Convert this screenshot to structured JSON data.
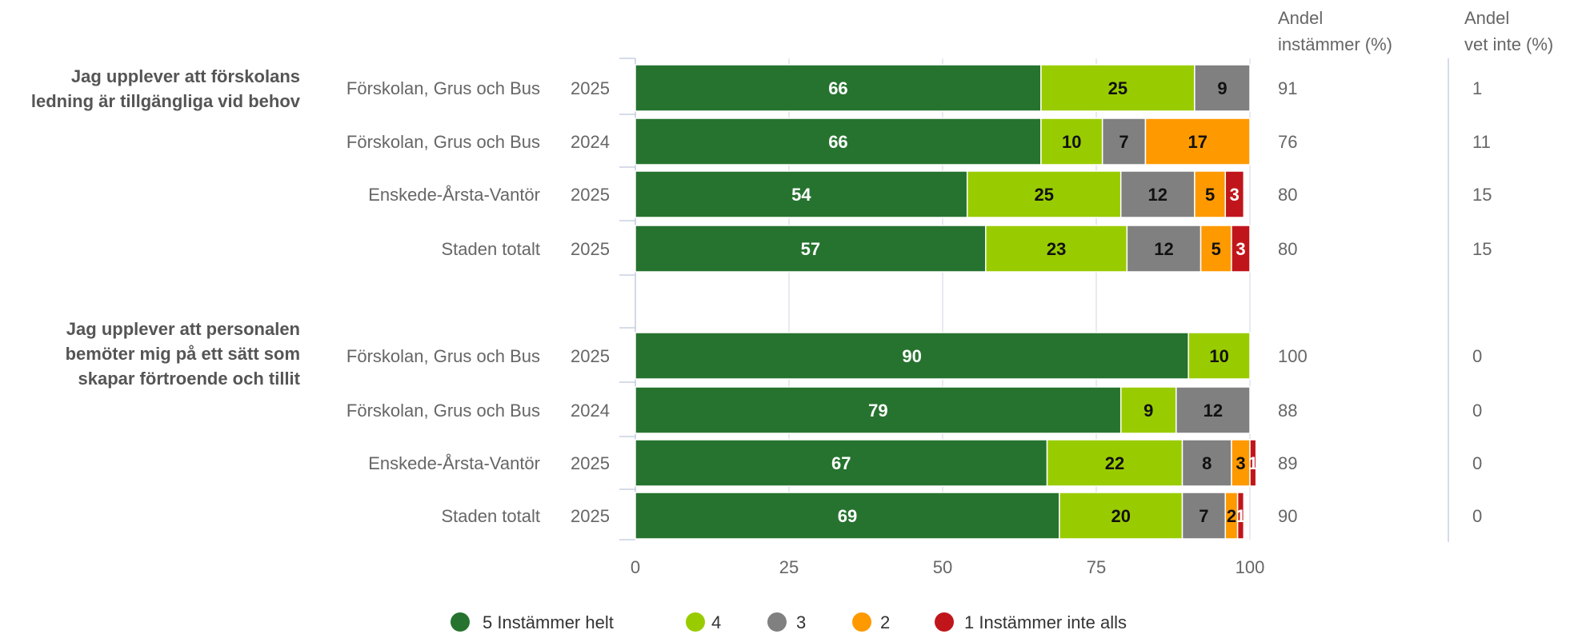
{
  "chart_data": {
    "type": "bar",
    "orientation": "horizontal",
    "stacked": true,
    "xlim": [
      0,
      100
    ],
    "x_ticks": [
      "0",
      "25",
      "50",
      "75",
      "100"
    ],
    "grid": true,
    "legend_placement": "bottom",
    "column_headers": {
      "agree_line1": "Andel",
      "agree_line2": "instämmer (%)",
      "dontknow_line1": "Andel",
      "dontknow_line2": "vet inte (%)"
    },
    "series": [
      {
        "name": "5 Instämmer helt",
        "color": "#26732f",
        "label_color": "#ffffff"
      },
      {
        "name": "4",
        "color": "#99cc00",
        "label_color": "#111111"
      },
      {
        "name": "3",
        "color": "#808080",
        "label_color": "#111111"
      },
      {
        "name": "2",
        "color": "#ff9900",
        "label_color": "#111111"
      },
      {
        "name": "1 Instämmer inte alls",
        "color": "#c0161b",
        "label_color": "#ffffff"
      }
    ],
    "groups": [
      {
        "question_lines": [
          "Jag upplever att förskolans",
          "ledning är tillgängliga vid behov"
        ],
        "rows": [
          {
            "unit": "Förskolan, Grus och Bus",
            "year": "2025",
            "values": [
              66,
              25,
              9,
              0,
              0
            ],
            "agree": "91",
            "dont_know": "1"
          },
          {
            "unit": "Förskolan, Grus och Bus",
            "year": "2024",
            "values": [
              66,
              10,
              7,
              17,
              0
            ],
            "agree": "76",
            "dont_know": "11"
          },
          {
            "unit": "Enskede-Årsta-Vantör",
            "year": "2025",
            "values": [
              54,
              25,
              12,
              5,
              3
            ],
            "agree": "80",
            "dont_know": "15"
          },
          {
            "unit": "Staden totalt",
            "year": "2025",
            "values": [
              57,
              23,
              12,
              5,
              3
            ],
            "agree": "80",
            "dont_know": "15"
          }
        ]
      },
      {
        "question_lines": [
          "Jag upplever att personalen",
          "bemöter mig på ett sätt som",
          "skapar förtroende och tillit"
        ],
        "rows": [
          {
            "unit": "Förskolan, Grus och Bus",
            "year": "2025",
            "values": [
              90,
              10,
              0,
              0,
              0
            ],
            "agree": "100",
            "dont_know": "0"
          },
          {
            "unit": "Förskolan, Grus och Bus",
            "year": "2024",
            "values": [
              79,
              9,
              12,
              0,
              0
            ],
            "agree": "88",
            "dont_know": "0"
          },
          {
            "unit": "Enskede-Årsta-Vantör",
            "year": "2025",
            "values": [
              67,
              22,
              8,
              3,
              1
            ],
            "agree": "89",
            "dont_know": "0"
          },
          {
            "unit": "Staden totalt",
            "year": "2025",
            "values": [
              69,
              20,
              7,
              2,
              1
            ],
            "agree": "90",
            "dont_know": "0"
          }
        ]
      }
    ]
  }
}
